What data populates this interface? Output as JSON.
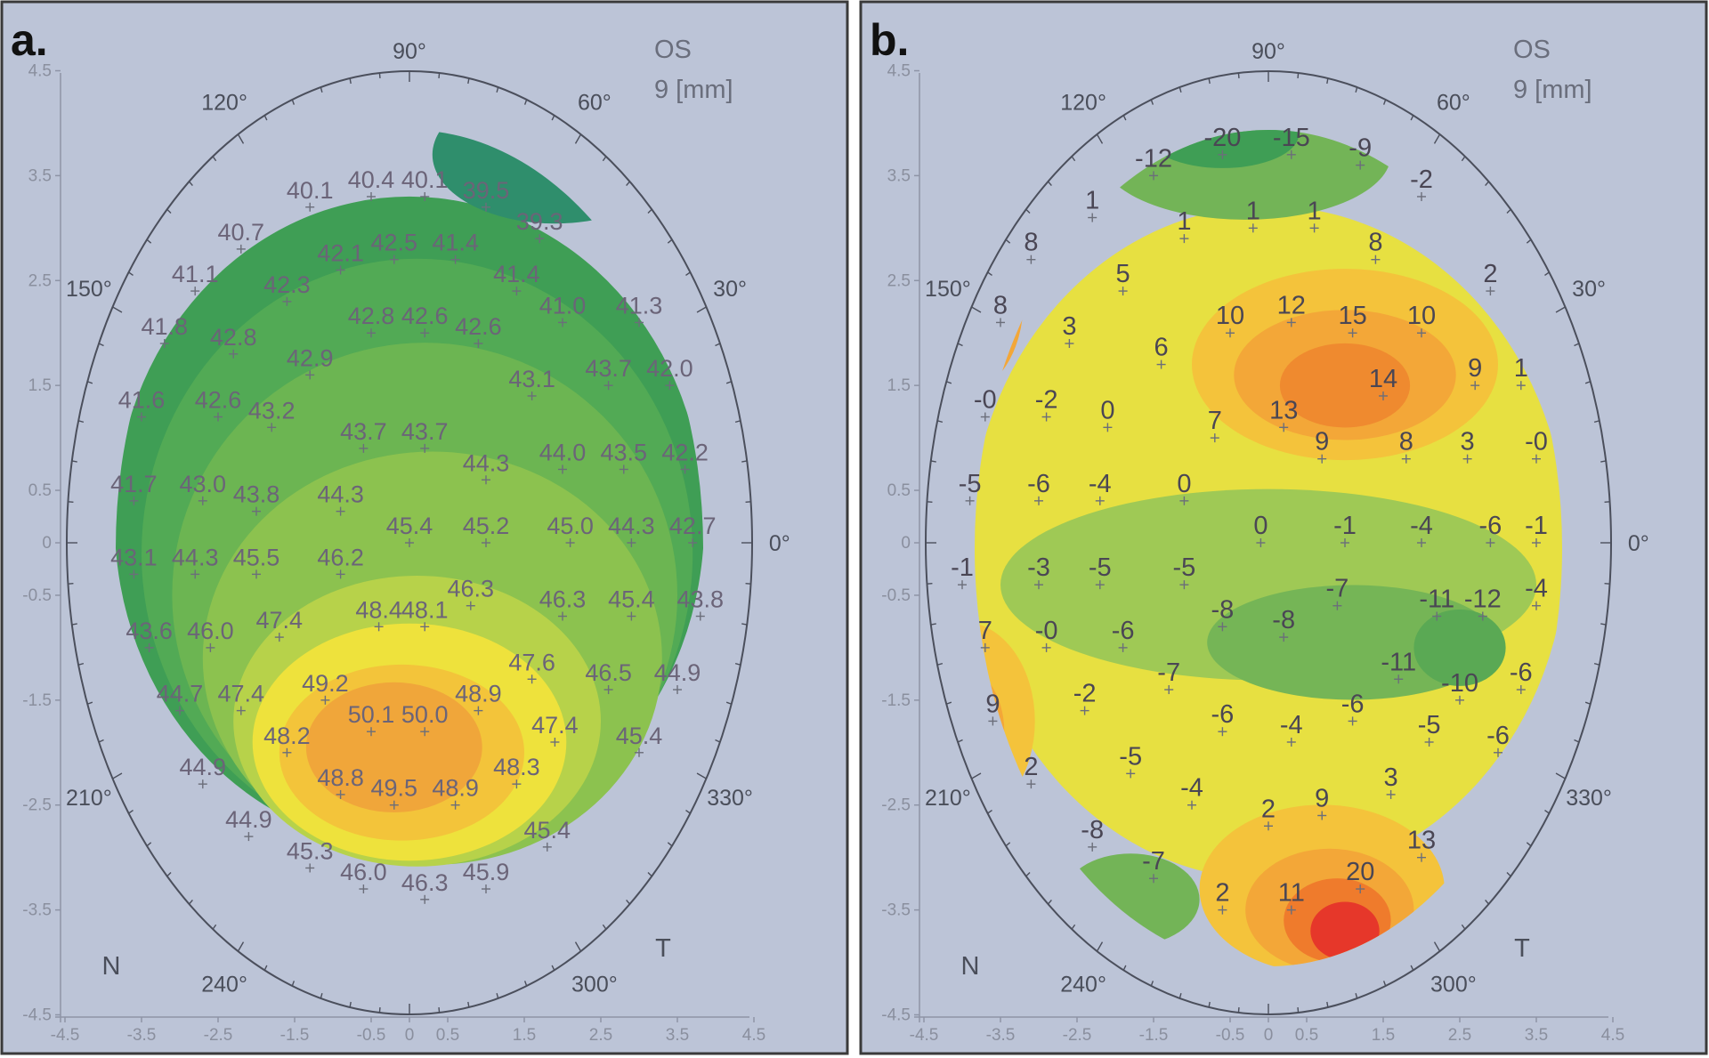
{
  "chart_data": [
    {
      "panel": "a.",
      "type": "contour-map",
      "eye": "OS",
      "zone": "9 [mm]",
      "xlim": [
        -4.5,
        4.5
      ],
      "ylim": [
        -4.5,
        4.5
      ],
      "x_ticks": [
        "-4.5",
        "-3.5",
        "-2.5",
        "-1.5",
        "-0.5",
        "0",
        "0.5",
        "1.5",
        "2.5",
        "3.5",
        "4.5"
      ],
      "y_ticks": [
        "4.5",
        "3.5",
        "2.5",
        "1.5",
        "0.5",
        "0",
        "-0.5",
        "-1.5",
        "-2.5",
        "-3.5",
        "-4.5"
      ],
      "angle_labels": [
        "90°",
        "60°",
        "30°",
        "0°",
        "330°",
        "300°",
        "240°",
        "210°",
        "150°",
        "120°"
      ],
      "corner_labels": {
        "nasal": "N",
        "temporal": "T"
      },
      "points": [
        {
          "x": -1.3,
          "y": 3.2,
          "v": "40.1"
        },
        {
          "x": -0.5,
          "y": 3.3,
          "v": "40.4"
        },
        {
          "x": 0.2,
          "y": 3.3,
          "v": "40.1"
        },
        {
          "x": 1.0,
          "y": 3.2,
          "v": "39.5"
        },
        {
          "x": 1.7,
          "y": 2.9,
          "v": "39.3"
        },
        {
          "x": -2.2,
          "y": 2.8,
          "v": "40.7"
        },
        {
          "x": -0.9,
          "y": 2.6,
          "v": "42.1"
        },
        {
          "x": -0.2,
          "y": 2.7,
          "v": "42.5"
        },
        {
          "x": 0.6,
          "y": 2.7,
          "v": "41.4"
        },
        {
          "x": 1.4,
          "y": 2.4,
          "v": "41.4"
        },
        {
          "x": -2.8,
          "y": 2.4,
          "v": "41.1"
        },
        {
          "x": -1.6,
          "y": 2.3,
          "v": "42.3"
        },
        {
          "x": -0.5,
          "y": 2.0,
          "v": "42.8"
        },
        {
          "x": 0.2,
          "y": 2.0,
          "v": "42.6"
        },
        {
          "x": 0.9,
          "y": 1.9,
          "v": "42.6"
        },
        {
          "x": 2.0,
          "y": 2.1,
          "v": "41.0"
        },
        {
          "x": 3.0,
          "y": 2.1,
          "v": "41.3"
        },
        {
          "x": -3.2,
          "y": 1.9,
          "v": "41.8"
        },
        {
          "x": -2.3,
          "y": 1.8,
          "v": "42.8"
        },
        {
          "x": -1.3,
          "y": 1.6,
          "v": "42.9"
        },
        {
          "x": 1.6,
          "y": 1.4,
          "v": "43.1"
        },
        {
          "x": 2.6,
          "y": 1.5,
          "v": "43.7"
        },
        {
          "x": 3.4,
          "y": 1.5,
          "v": "42.0"
        },
        {
          "x": -3.5,
          "y": 1.2,
          "v": "41.6"
        },
        {
          "x": -2.5,
          "y": 1.2,
          "v": "42.6"
        },
        {
          "x": -1.8,
          "y": 1.1,
          "v": "43.2"
        },
        {
          "x": -0.6,
          "y": 0.9,
          "v": "43.7"
        },
        {
          "x": 0.2,
          "y": 0.9,
          "v": "43.7"
        },
        {
          "x": 1.0,
          "y": 0.6,
          "v": "44.3"
        },
        {
          "x": 2.0,
          "y": 0.7,
          "v": "44.0"
        },
        {
          "x": 2.8,
          "y": 0.7,
          "v": "43.5"
        },
        {
          "x": 3.6,
          "y": 0.7,
          "v": "42.2"
        },
        {
          "x": -3.6,
          "y": 0.4,
          "v": "41.7"
        },
        {
          "x": -2.7,
          "y": 0.4,
          "v": "43.0"
        },
        {
          "x": -2.0,
          "y": 0.3,
          "v": "43.8"
        },
        {
          "x": -0.9,
          "y": 0.3,
          "v": "44.3"
        },
        {
          "x": 0.0,
          "y": -0.0,
          "v": "45.4"
        },
        {
          "x": 1.0,
          "y": -0.0,
          "v": "45.2"
        },
        {
          "x": 2.1,
          "y": -0.0,
          "v": "45.0"
        },
        {
          "x": 2.9,
          "y": -0.0,
          "v": "44.3"
        },
        {
          "x": 3.7,
          "y": -0.0,
          "v": "42.7"
        },
        {
          "x": -3.6,
          "y": -0.3,
          "v": "43.1"
        },
        {
          "x": -2.8,
          "y": -0.3,
          "v": "44.3"
        },
        {
          "x": -2.0,
          "y": -0.3,
          "v": "45.5"
        },
        {
          "x": -0.9,
          "y": -0.3,
          "v": "46.2"
        },
        {
          "x": 0.8,
          "y": -0.6,
          "v": "46.3"
        },
        {
          "x": 2.0,
          "y": -0.7,
          "v": "46.3"
        },
        {
          "x": 2.9,
          "y": -0.7,
          "v": "45.4"
        },
        {
          "x": 3.8,
          "y": -0.7,
          "v": "43.8"
        },
        {
          "x": -3.4,
          "y": -1.0,
          "v": "43.6"
        },
        {
          "x": -2.6,
          "y": -1.0,
          "v": "46.0"
        },
        {
          "x": -1.7,
          "y": -0.9,
          "v": "47.4"
        },
        {
          "x": -0.4,
          "y": -0.8,
          "v": "48.4"
        },
        {
          "x": 0.2,
          "y": -0.8,
          "v": "48.1"
        },
        {
          "x": 1.6,
          "y": -1.3,
          "v": "47.6"
        },
        {
          "x": 2.6,
          "y": -1.4,
          "v": "46.5"
        },
        {
          "x": 3.5,
          "y": -1.4,
          "v": "44.9"
        },
        {
          "x": -3.0,
          "y": -1.6,
          "v": "44.7"
        },
        {
          "x": -2.2,
          "y": -1.6,
          "v": "47.4"
        },
        {
          "x": -1.1,
          "y": -1.5,
          "v": "49.2"
        },
        {
          "x": -0.5,
          "y": -1.8,
          "v": "50.1"
        },
        {
          "x": 0.2,
          "y": -1.8,
          "v": "50.0"
        },
        {
          "x": 0.9,
          "y": -1.6,
          "v": "48.9"
        },
        {
          "x": 1.9,
          "y": -1.9,
          "v": "47.4"
        },
        {
          "x": 3.0,
          "y": -2.0,
          "v": "45.4"
        },
        {
          "x": -2.7,
          "y": -2.3,
          "v": "44.9"
        },
        {
          "x": -1.6,
          "y": -2.0,
          "v": "48.2"
        },
        {
          "x": -0.9,
          "y": -2.4,
          "v": "48.8"
        },
        {
          "x": -0.2,
          "y": -2.5,
          "v": "49.5"
        },
        {
          "x": 0.6,
          "y": -2.5,
          "v": "48.9"
        },
        {
          "x": 1.4,
          "y": -2.3,
          "v": "48.3"
        },
        {
          "x": -2.1,
          "y": -2.8,
          "v": "44.9"
        },
        {
          "x": -1.3,
          "y": -3.1,
          "v": "45.3"
        },
        {
          "x": -0.6,
          "y": -3.3,
          "v": "46.0"
        },
        {
          "x": 0.2,
          "y": -3.4,
          "v": "46.3"
        },
        {
          "x": 1.0,
          "y": -3.3,
          "v": "45.9"
        },
        {
          "x": 1.8,
          "y": -2.9,
          "v": "45.4"
        }
      ]
    },
    {
      "panel": "b.",
      "type": "contour-map",
      "eye": "OS",
      "zone": "9 [mm]",
      "xlim": [
        -4.5,
        4.5
      ],
      "ylim": [
        -4.5,
        4.5
      ],
      "x_ticks": [
        "-4.5",
        "-3.5",
        "-2.5",
        "-1.5",
        "-0.5",
        "0",
        "0.5",
        "1.5",
        "2.5",
        "3.5",
        "4.5"
      ],
      "y_ticks": [
        "4.5",
        "3.5",
        "2.5",
        "1.5",
        "0.5",
        "0",
        "-0.5",
        "-1.5",
        "-2.5",
        "-3.5",
        "-4.5"
      ],
      "angle_labels": [
        "90°",
        "60°",
        "30°",
        "0°",
        "330°",
        "300°",
        "240°",
        "210°",
        "150°",
        "120°"
      ],
      "corner_labels": {
        "nasal": "N",
        "temporal": "T"
      },
      "points": [
        {
          "x": -1.5,
          "y": 3.5,
          "v": "-12"
        },
        {
          "x": -0.6,
          "y": 3.7,
          "v": "-20"
        },
        {
          "x": 0.3,
          "y": 3.7,
          "v": "-15"
        },
        {
          "x": 1.2,
          "y": 3.6,
          "v": "-9"
        },
        {
          "x": 2.0,
          "y": 3.3,
          "v": "-2"
        },
        {
          "x": -2.3,
          "y": 3.1,
          "v": "1"
        },
        {
          "x": -1.1,
          "y": 2.9,
          "v": "1"
        },
        {
          "x": -0.2,
          "y": 3.0,
          "v": "1"
        },
        {
          "x": 0.6,
          "y": 3.0,
          "v": "1"
        },
        {
          "x": 1.4,
          "y": 2.7,
          "v": "8"
        },
        {
          "x": -3.1,
          "y": 2.7,
          "v": "8"
        },
        {
          "x": -1.9,
          "y": 2.4,
          "v": "5"
        },
        {
          "x": 2.9,
          "y": 2.4,
          "v": "2"
        },
        {
          "x": -3.5,
          "y": 2.1,
          "v": "8"
        },
        {
          "x": -2.6,
          "y": 1.9,
          "v": "3"
        },
        {
          "x": -1.4,
          "y": 1.7,
          "v": "6"
        },
        {
          "x": -0.5,
          "y": 2.0,
          "v": "10"
        },
        {
          "x": 0.3,
          "y": 2.1,
          "v": "12"
        },
        {
          "x": 1.1,
          "y": 2.0,
          "v": "15"
        },
        {
          "x": 2.0,
          "y": 2.0,
          "v": "10"
        },
        {
          "x": 2.7,
          "y": 1.5,
          "v": "9"
        },
        {
          "x": 3.3,
          "y": 1.5,
          "v": "1"
        },
        {
          "x": -3.7,
          "y": 1.2,
          "v": "-0"
        },
        {
          "x": -2.9,
          "y": 1.2,
          "v": "-2"
        },
        {
          "x": -2.1,
          "y": 1.1,
          "v": "0"
        },
        {
          "x": -0.7,
          "y": 1.0,
          "v": "7"
        },
        {
          "x": 0.2,
          "y": 1.1,
          "v": "13"
        },
        {
          "x": 1.5,
          "y": 1.4,
          "v": "14"
        },
        {
          "x": 0.7,
          "y": 0.8,
          "v": "9"
        },
        {
          "x": 1.8,
          "y": 0.8,
          "v": "8"
        },
        {
          "x": 2.6,
          "y": 0.8,
          "v": "3"
        },
        {
          "x": 3.5,
          "y": 0.8,
          "v": "-0"
        },
        {
          "x": -3.9,
          "y": 0.4,
          "v": "-5"
        },
        {
          "x": -3.0,
          "y": 0.4,
          "v": "-6"
        },
        {
          "x": -2.2,
          "y": 0.4,
          "v": "-4"
        },
        {
          "x": -1.1,
          "y": 0.4,
          "v": "0"
        },
        {
          "x": -0.1,
          "y": 0.0,
          "v": "0"
        },
        {
          "x": 1.0,
          "y": 0.0,
          "v": "-1"
        },
        {
          "x": 2.0,
          "y": 0.0,
          "v": "-4"
        },
        {
          "x": 2.9,
          "y": 0.0,
          "v": "-6"
        },
        {
          "x": 3.5,
          "y": 0.0,
          "v": "-1"
        },
        {
          "x": -4.0,
          "y": -0.4,
          "v": "-1"
        },
        {
          "x": -3.0,
          "y": -0.4,
          "v": "-3"
        },
        {
          "x": -2.2,
          "y": -0.4,
          "v": "-5"
        },
        {
          "x": -1.1,
          "y": -0.4,
          "v": "-5"
        },
        {
          "x": 0.9,
          "y": -0.6,
          "v": "-7"
        },
        {
          "x": 2.2,
          "y": -0.7,
          "v": "-11"
        },
        {
          "x": 2.8,
          "y": -0.7,
          "v": "-12"
        },
        {
          "x": 3.5,
          "y": -0.6,
          "v": "-4"
        },
        {
          "x": -3.7,
          "y": -1.0,
          "v": "7"
        },
        {
          "x": -2.9,
          "y": -1.0,
          "v": "-0"
        },
        {
          "x": -1.9,
          "y": -1.0,
          "v": "-6"
        },
        {
          "x": -0.6,
          "y": -0.8,
          "v": "-8"
        },
        {
          "x": 0.2,
          "y": -0.9,
          "v": "-8"
        },
        {
          "x": -1.3,
          "y": -1.4,
          "v": "-7"
        },
        {
          "x": 1.7,
          "y": -1.3,
          "v": "-11"
        },
        {
          "x": 2.5,
          "y": -1.5,
          "v": "-10"
        },
        {
          "x": 3.3,
          "y": -1.4,
          "v": "-6"
        },
        {
          "x": -3.6,
          "y": -1.7,
          "v": "9"
        },
        {
          "x": -2.4,
          "y": -1.6,
          "v": "-2"
        },
        {
          "x": -0.6,
          "y": -1.8,
          "v": "-6"
        },
        {
          "x": 0.3,
          "y": -1.9,
          "v": "-4"
        },
        {
          "x": 1.1,
          "y": -1.7,
          "v": "-6"
        },
        {
          "x": 2.1,
          "y": -1.9,
          "v": "-5"
        },
        {
          "x": 3.0,
          "y": -2.0,
          "v": "-6"
        },
        {
          "x": -3.1,
          "y": -2.3,
          "v": "2"
        },
        {
          "x": -1.8,
          "y": -2.2,
          "v": "-5"
        },
        {
          "x": -1.0,
          "y": -2.5,
          "v": "-4"
        },
        {
          "x": 0.0,
          "y": -2.7,
          "v": "2"
        },
        {
          "x": 0.7,
          "y": -2.6,
          "v": "9"
        },
        {
          "x": 1.6,
          "y": -2.4,
          "v": "3"
        },
        {
          "x": -2.3,
          "y": -2.9,
          "v": "-8"
        },
        {
          "x": -1.5,
          "y": -3.2,
          "v": "-7"
        },
        {
          "x": -0.6,
          "y": -3.5,
          "v": "2"
        },
        {
          "x": 0.3,
          "y": -3.5,
          "v": "11"
        },
        {
          "x": 1.2,
          "y": -3.3,
          "v": "20"
        },
        {
          "x": 2.0,
          "y": -3.0,
          "v": "13"
        }
      ]
    }
  ]
}
